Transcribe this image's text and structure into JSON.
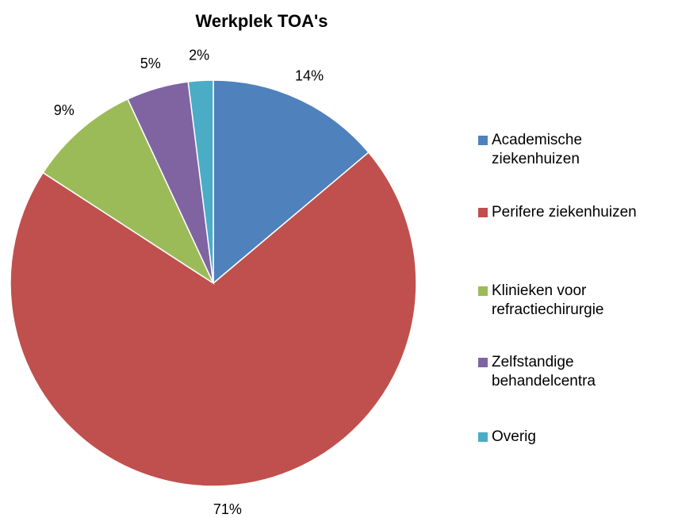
{
  "chart_data": {
    "type": "pie",
    "title": "Werkplek TOA's",
    "categories": [
      "Academische ziekenhuizen",
      "Perifere ziekenhuizen",
      "Klinieken voor refractiechirurgie",
      "Zelfstandige behandelcentra",
      "Overig"
    ],
    "values": [
      14,
      71,
      9,
      5,
      2
    ],
    "value_labels": [
      "14%",
      "71%",
      "9%",
      "5%",
      "2%"
    ],
    "colors": [
      "#4f81bd",
      "#c0504d",
      "#9bbb59",
      "#8064a2",
      "#4bacc6"
    ],
    "legend": "right"
  }
}
